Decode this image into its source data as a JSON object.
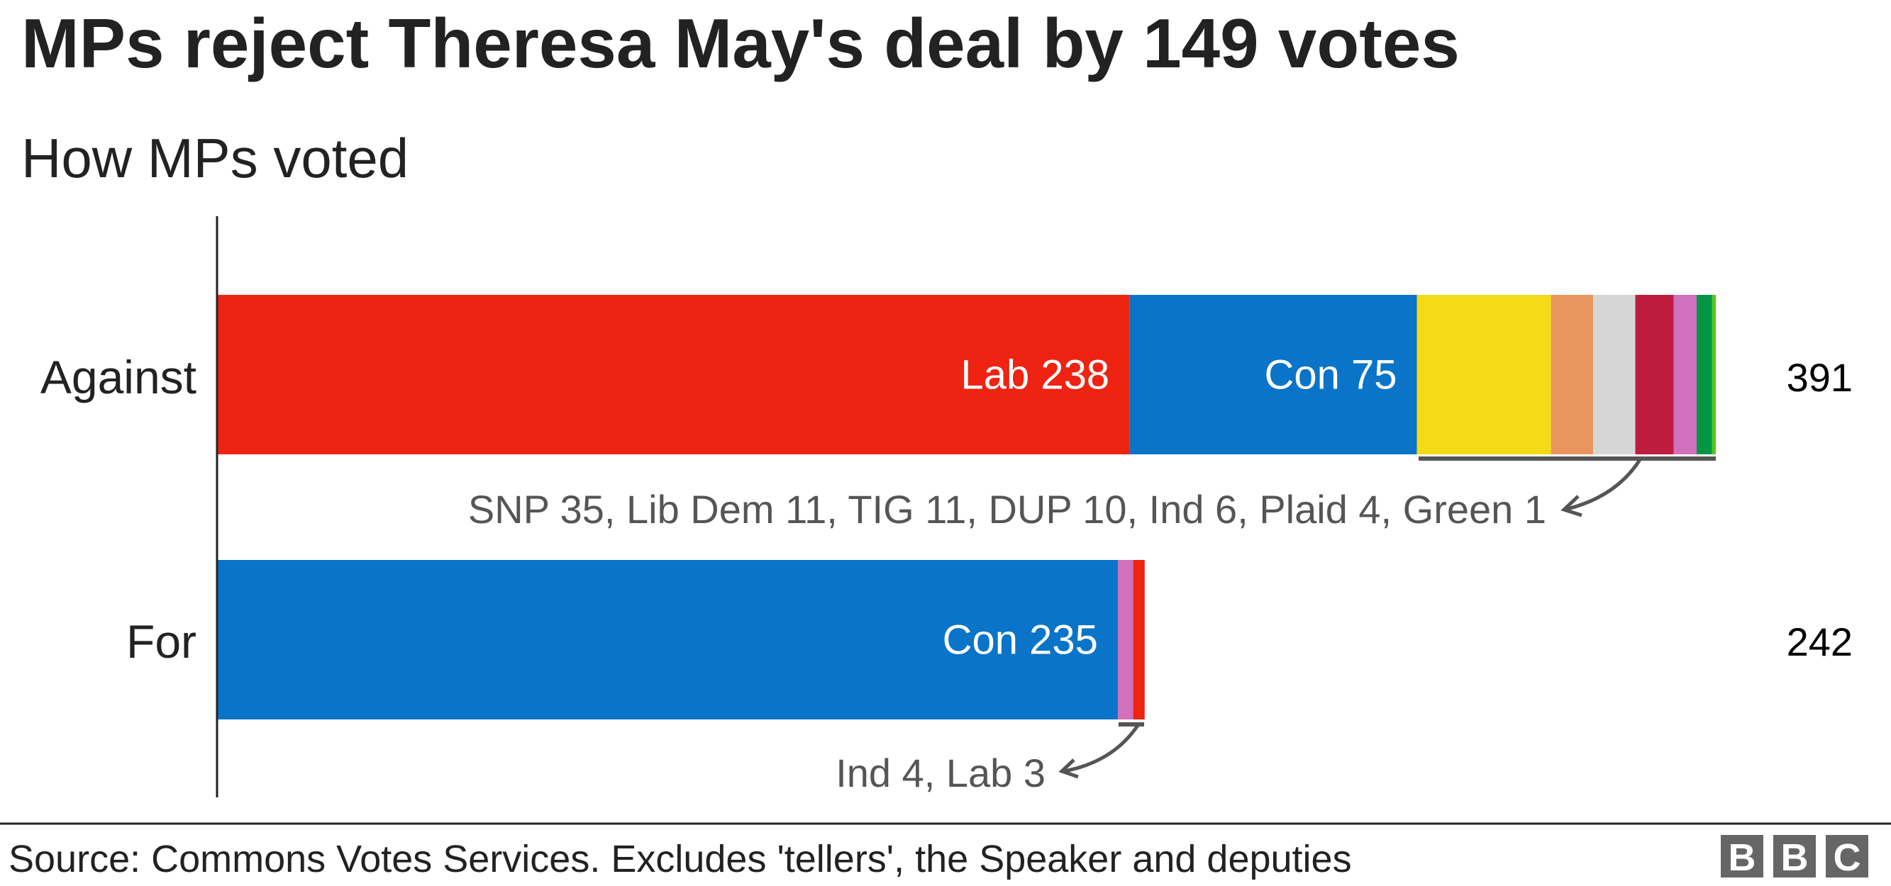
{
  "chart_data": {
    "type": "bar",
    "stacked": true,
    "orientation": "horizontal",
    "title": "MPs reject Theresa May's deal by 149 votes",
    "subtitle": "How MPs voted",
    "categories": [
      "Against",
      "For"
    ],
    "bars": [
      {
        "category": "Against",
        "total": 391,
        "total_label": "391",
        "segments": [
          {
            "party": "Lab",
            "value": 238,
            "color": "#EE2311",
            "label": "Lab 238"
          },
          {
            "party": "Con",
            "value": 75,
            "color": "#0A74C8",
            "label": "Con 75"
          },
          {
            "party": "SNP",
            "value": 35,
            "color": "#F5DA16",
            "label": ""
          },
          {
            "party": "Lib Dem",
            "value": 11,
            "color": "#E9955E",
            "label": ""
          },
          {
            "party": "TIG",
            "value": 11,
            "color": "#D6D6D6",
            "label": ""
          },
          {
            "party": "DUP",
            "value": 10,
            "color": "#BE1C3F",
            "label": ""
          },
          {
            "party": "Ind",
            "value": 6,
            "color": "#D170BC",
            "label": ""
          },
          {
            "party": "Plaid",
            "value": 4,
            "color": "#039644",
            "label": ""
          },
          {
            "party": "Green",
            "value": 1,
            "color": "#54C41D",
            "label": ""
          }
        ],
        "annotation": "SNP 35, Lib Dem 11, TIG 11, DUP 10, Ind 6, Plaid 4, Green 1"
      },
      {
        "category": "For",
        "total": 242,
        "total_label": "242",
        "segments": [
          {
            "party": "Con",
            "value": 235,
            "color": "#0A74C8",
            "label": "Con 235"
          },
          {
            "party": "Ind",
            "value": 4,
            "color": "#D170BC",
            "label": ""
          },
          {
            "party": "Lab",
            "value": 3,
            "color": "#EE2311",
            "label": ""
          }
        ],
        "annotation": "Ind 4, Lab 3"
      }
    ],
    "xlim": [
      0,
      391
    ],
    "grid": false,
    "legend": "none"
  },
  "footer": {
    "source": "Source: Commons Votes Services. Excludes 'tellers', the Speaker and deputies",
    "logo": "BBC"
  }
}
